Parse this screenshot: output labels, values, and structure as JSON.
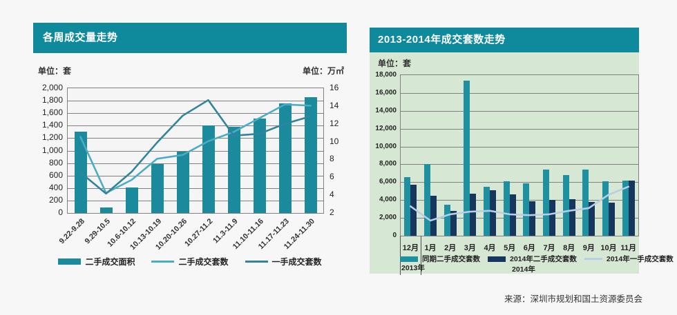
{
  "page": {
    "source": "来源：深圳市规划和国土资源委员会"
  },
  "colors": {
    "header_teal": "#0e8a9c",
    "green_panel": "#d6e7d3",
    "plot_fill": "#f5f5f5",
    "grid_line": "#808080",
    "divider": "#4d4d4d",
    "left_bar_teal": "#1a8a9c",
    "second_hand_units_line_blue": "#4bacc6",
    "first_hand_units_line_teal": "#31849b",
    "prev_year_bar_teal": "#1f909f",
    "bar_navy": "#17365d",
    "pale_blue_line": "#b9cde6",
    "title_text": "#ffffff",
    "label_text": "#333333"
  },
  "left_chart": {
    "title": "各周成交量走势",
    "unit_left": "单位：套",
    "unit_right": "单位：万㎡",
    "chart_data": {
      "type": "bar+line combo, dual axis",
      "categories": [
        "9.22-9.28",
        "9.29-10.5",
        "10.6-10.12",
        "10.13-10.19",
        "10.20-10.26",
        "10.27-11.2",
        "11.3-11.9",
        "11.10-11.16",
        "11.17-11.23",
        "11.24-11.30"
      ],
      "left_axis": {
        "unit": "套",
        "min": 0,
        "max": 2000,
        "step": 200
      },
      "right_axis": {
        "unit": "万㎡",
        "min": 2,
        "max": 16,
        "step": 2
      },
      "grid": "horizontal",
      "legend_position": "bottom",
      "series": [
        {
          "name": "二手成交面积",
          "type": "bar",
          "axis": "right",
          "color": "#1a8a9c",
          "values": [
            11.1,
            2.6,
            4.9,
            7.5,
            8.9,
            11.8,
            11.7,
            12.6,
            14.3,
            15.0
          ]
        },
        {
          "name": "二手成交套数",
          "type": "line",
          "axis": "left",
          "color": "#4bacc6",
          "values": [
            1220,
            320,
            530,
            870,
            930,
            1150,
            1300,
            1520,
            1740,
            1720
          ]
        },
        {
          "name": "一手成交套数",
          "type": "line",
          "axis": "left",
          "color": "#31849b",
          "values": [
            650,
            310,
            660,
            1130,
            1560,
            1810,
            1240,
            1270,
            1430,
            1550
          ]
        }
      ]
    }
  },
  "right_chart": {
    "title": "2013-2014年成交套数走势",
    "unit": "单位：套",
    "chart_data": {
      "type": "bar+line combo",
      "categories": [
        "12月",
        "1月",
        "2月",
        "3月",
        "4月",
        "5月",
        "6月",
        "7月",
        "8月",
        "9月",
        "10月",
        "11月"
      ],
      "year_labels": [
        "2013年",
        "2014年"
      ],
      "y_axis": {
        "unit": "套",
        "min": 0,
        "max": 18000,
        "step": 2000
      },
      "grid": "horizontal",
      "legend_position": "bottom",
      "series": [
        {
          "name": "同期二手成交套数",
          "type": "bar",
          "color": "#1f909f",
          "values": [
            6600,
            8000,
            3500,
            17400,
            5500,
            6100,
            5900,
            7400,
            6800,
            7400,
            6100,
            6200
          ]
        },
        {
          "name": "2014年二手成交套数",
          "type": "bar",
          "color": "#17365d",
          "values": [
            5700,
            4500,
            2800,
            4700,
            5100,
            4600,
            3900,
            4000,
            4100,
            3800,
            3700,
            6200
          ]
        },
        {
          "name": "2014年一手成交套数",
          "type": "line",
          "color": "#b9cde6",
          "values": [
            3300,
            1700,
            2400,
            2700,
            2800,
            2400,
            2300,
            2400,
            2800,
            3100,
            4600,
            5500
          ]
        }
      ]
    }
  }
}
